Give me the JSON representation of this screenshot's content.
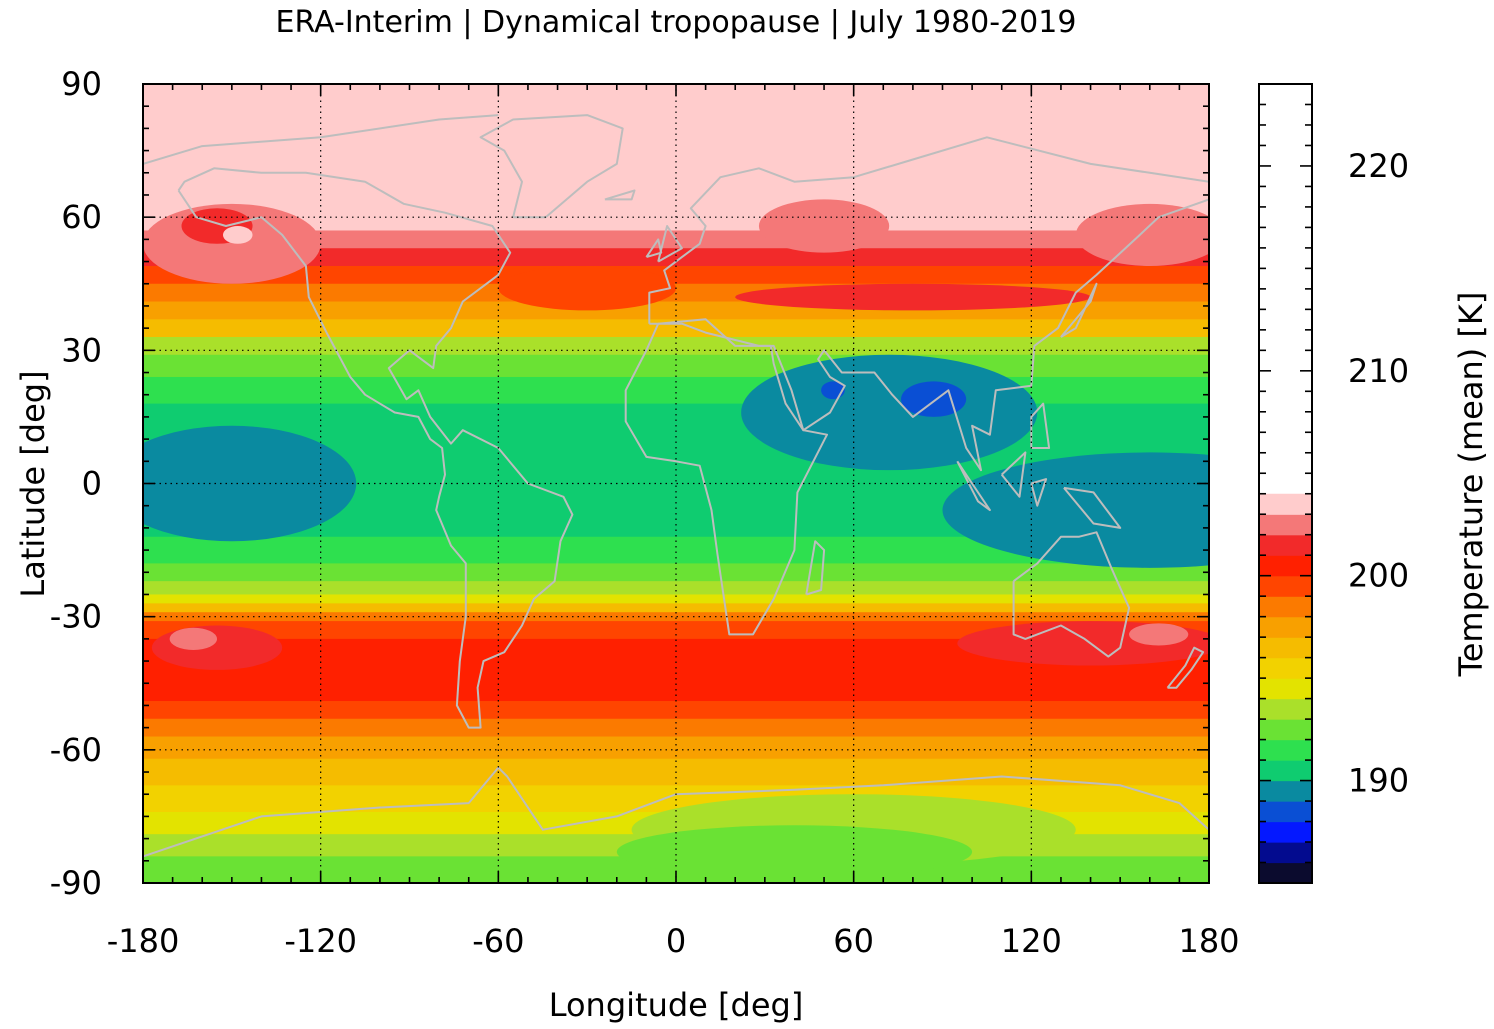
{
  "title": "ERA-Interim | Dynamical tropopause | July 1980-2019",
  "map": {
    "x_label": "Longitude [deg]",
    "y_label": "Latitude [deg]",
    "x_ticks": [
      "-180",
      "-120",
      "-60",
      "0",
      "60",
      "120",
      "180"
    ],
    "y_ticks": [
      "90",
      "60",
      "30",
      "0",
      "-30",
      "-60",
      "-90"
    ],
    "x_range": [
      -180,
      180
    ],
    "y_range": [
      -90,
      90
    ],
    "grid": "dotted",
    "coastline_color": "#bdbdbd"
  },
  "colorbar": {
    "label": "Temperature (mean) [K]",
    "range": [
      185,
      224
    ],
    "ticks": [
      "220",
      "210",
      "200",
      "190"
    ],
    "levels": [
      {
        "from": 185,
        "to": 186,
        "color": "#0b0b2e"
      },
      {
        "from": 186,
        "to": 187,
        "color": "#030b8f"
      },
      {
        "from": 187,
        "to": 188,
        "color": "#0418ff"
      },
      {
        "from": 188,
        "to": 189,
        "color": "#0a4fd4"
      },
      {
        "from": 189,
        "to": 190,
        "color": "#0a8aa0"
      },
      {
        "from": 190,
        "to": 191,
        "color": "#0fcc70"
      },
      {
        "from": 191,
        "to": 192,
        "color": "#2ee04f"
      },
      {
        "from": 192,
        "to": 193,
        "color": "#6ae234"
      },
      {
        "from": 193,
        "to": 194,
        "color": "#aae02a"
      },
      {
        "from": 194,
        "to": 195,
        "color": "#e3e300"
      },
      {
        "from": 195,
        "to": 196,
        "color": "#f2d200"
      },
      {
        "from": 196,
        "to": 197,
        "color": "#f5bc00"
      },
      {
        "from": 197,
        "to": 198,
        "color": "#f8a000"
      },
      {
        "from": 198,
        "to": 199,
        "color": "#fb7a00"
      },
      {
        "from": 199,
        "to": 200,
        "color": "#ff4500"
      },
      {
        "from": 200,
        "to": 201,
        "color": "#ff2000"
      },
      {
        "from": 201,
        "to": 202,
        "color": "#f22a2a"
      },
      {
        "from": 202,
        "to": 203,
        "color": "#f47878"
      },
      {
        "from": 203,
        "to": 204,
        "color": "#ffcccc"
      }
    ]
  },
  "field": {
    "zonal_bands": [
      {
        "lat_from": 90,
        "lat_to": 57,
        "color": "#ffcccc"
      },
      {
        "lat_from": 57,
        "lat_to": 53,
        "color": "#f47878"
      },
      {
        "lat_from": 53,
        "lat_to": 49,
        "color": "#f22a2a"
      },
      {
        "lat_from": 49,
        "lat_to": 45,
        "color": "#ff4500"
      },
      {
        "lat_from": 45,
        "lat_to": 41,
        "color": "#fb7a00"
      },
      {
        "lat_from": 41,
        "lat_to": 37,
        "color": "#f8a000"
      },
      {
        "lat_from": 37,
        "lat_to": 33,
        "color": "#f5bc00"
      },
      {
        "lat_from": 33,
        "lat_to": 29,
        "color": "#aae02a"
      },
      {
        "lat_from": 29,
        "lat_to": 24,
        "color": "#6ae234"
      },
      {
        "lat_from": 24,
        "lat_to": 18,
        "color": "#2ee04f"
      },
      {
        "lat_from": 18,
        "lat_to": -12,
        "color": "#0fcc70"
      },
      {
        "lat_from": -12,
        "lat_to": -18,
        "color": "#2ee04f"
      },
      {
        "lat_from": -18,
        "lat_to": -22,
        "color": "#6ae234"
      },
      {
        "lat_from": -22,
        "lat_to": -25,
        "color": "#aae02a"
      },
      {
        "lat_from": -25,
        "lat_to": -27,
        "color": "#e3e300"
      },
      {
        "lat_from": -27,
        "lat_to": -29,
        "color": "#f5bc00"
      },
      {
        "lat_from": -29,
        "lat_to": -31,
        "color": "#fb7a00"
      },
      {
        "lat_from": -31,
        "lat_to": -35,
        "color": "#ff4500"
      },
      {
        "lat_from": -35,
        "lat_to": -49,
        "color": "#ff2000"
      },
      {
        "lat_from": -49,
        "lat_to": -53,
        "color": "#ff4500"
      },
      {
        "lat_from": -53,
        "lat_to": -57,
        "color": "#fb7a00"
      },
      {
        "lat_from": -57,
        "lat_to": -62,
        "color": "#f8a000"
      },
      {
        "lat_from": -62,
        "lat_to": -68,
        "color": "#f5bc00"
      },
      {
        "lat_from": -68,
        "lat_to": -74,
        "color": "#f2d200"
      },
      {
        "lat_from": -74,
        "lat_to": -79,
        "color": "#e3e300"
      },
      {
        "lat_from": -79,
        "lat_to": -84,
        "color": "#aae02a"
      },
      {
        "lat_from": -84,
        "lat_to": -90,
        "color": "#6ae234"
      }
    ],
    "regions": [
      {
        "shape": "ellipse",
        "lon": -150,
        "lat": 54,
        "rlon": 30,
        "rlat": 9,
        "color": "#f47878"
      },
      {
        "shape": "ellipse",
        "lon": -155,
        "lat": 58,
        "rlon": 12,
        "rlat": 4,
        "color": "#f22a2a"
      },
      {
        "shape": "ellipse",
        "lon": -148,
        "lat": 56,
        "rlon": 5,
        "rlat": 2,
        "color": "#ffcccc"
      },
      {
        "shape": "ellipse",
        "lon": -30,
        "lat": 44,
        "rlon": 30,
        "rlat": 5,
        "color": "#ff4500"
      },
      {
        "shape": "ellipse",
        "lon": 50,
        "lat": 58,
        "rlon": 22,
        "rlat": 6,
        "color": "#f47878"
      },
      {
        "shape": "ellipse",
        "lon": 160,
        "lat": 56,
        "rlon": 25,
        "rlat": 7,
        "color": "#f47878"
      },
      {
        "shape": "ellipse",
        "lon": 80,
        "lat": 42,
        "rlon": 60,
        "rlat": 3,
        "color": "#f22a2a"
      },
      {
        "shape": "ellipse",
        "lon": -150,
        "lat": 0,
        "rlon": 42,
        "rlat": 13,
        "color": "#0a8aa0"
      },
      {
        "shape": "ellipse",
        "lon": 72,
        "lat": 16,
        "rlon": 50,
        "rlat": 13,
        "color": "#0a8aa0"
      },
      {
        "shape": "ellipse",
        "lon": 160,
        "lat": -6,
        "rlon": 70,
        "rlat": 13,
        "color": "#0a8aa0"
      },
      {
        "shape": "ellipse",
        "lon": 53,
        "lat": 21,
        "rlon": 4,
        "rlat": 2,
        "color": "#0a4fd4"
      },
      {
        "shape": "ellipse",
        "lon": 87,
        "lat": 19,
        "rlon": 11,
        "rlat": 4,
        "color": "#0a4fd4"
      },
      {
        "shape": "ellipse",
        "lon": -155,
        "lat": -37,
        "rlon": 22,
        "rlat": 5,
        "color": "#f22a2a"
      },
      {
        "shape": "ellipse",
        "lon": -163,
        "lat": -35,
        "rlon": 8,
        "rlat": 2.5,
        "color": "#f47878"
      },
      {
        "shape": "ellipse",
        "lon": 140,
        "lat": -36,
        "rlon": 45,
        "rlat": 5,
        "color": "#f22a2a"
      },
      {
        "shape": "ellipse",
        "lon": 163,
        "lat": -34,
        "rlon": 10,
        "rlat": 2.5,
        "color": "#f47878"
      },
      {
        "shape": "ellipse",
        "lon": 60,
        "lat": -78,
        "rlon": 75,
        "rlat": 8,
        "color": "#aae02a"
      },
      {
        "shape": "ellipse",
        "lon": 40,
        "lat": -83,
        "rlon": 60,
        "rlat": 6,
        "color": "#6ae234"
      }
    ],
    "coastlines": [
      [
        [
          -168,
          66
        ],
        [
          -162,
          60
        ],
        [
          -152,
          58
        ],
        [
          -140,
          60
        ],
        [
          -133,
          56
        ],
        [
          -125,
          49
        ],
        [
          -124,
          42
        ],
        [
          -118,
          34
        ],
        [
          -110,
          24
        ],
        [
          -105,
          20
        ],
        [
          -95,
          16
        ],
        [
          -87,
          15
        ],
        [
          -83,
          10
        ],
        [
          -79,
          8
        ],
        [
          -78,
          2
        ],
        [
          -80,
          -3
        ],
        [
          -81,
          -6
        ],
        [
          -76,
          -14
        ],
        [
          -71,
          -18
        ],
        [
          -71,
          -30
        ],
        [
          -73,
          -40
        ],
        [
          -74,
          -50
        ],
        [
          -70,
          -55
        ],
        [
          -66,
          -55
        ],
        [
          -67,
          -46
        ],
        [
          -65,
          -40
        ],
        [
          -58,
          -38
        ],
        [
          -52,
          -32
        ],
        [
          -48,
          -26
        ],
        [
          -41,
          -22
        ],
        [
          -39,
          -13
        ],
        [
          -35,
          -7
        ],
        [
          -38,
          -3
        ],
        [
          -50,
          0
        ],
        [
          -60,
          8
        ],
        [
          -72,
          12
        ],
        [
          -76,
          9
        ],
        [
          -83,
          15
        ],
        [
          -87,
          21
        ],
        [
          -91,
          19
        ],
        [
          -97,
          26
        ],
        [
          -90,
          30
        ],
        [
          -82,
          26
        ],
        [
          -81,
          31
        ],
        [
          -76,
          35
        ],
        [
          -72,
          41
        ],
        [
          -66,
          44
        ],
        [
          -60,
          47
        ],
        [
          -56,
          52
        ],
        [
          -62,
          58
        ],
        [
          -78,
          61
        ],
        [
          -92,
          63
        ],
        [
          -105,
          68
        ],
        [
          -125,
          70
        ],
        [
          -140,
          70
        ],
        [
          -156,
          71
        ],
        [
          -166,
          68
        ],
        [
          -168,
          66
        ]
      ],
      [
        [
          -55,
          60
        ],
        [
          -44,
          60
        ],
        [
          -30,
          68
        ],
        [
          -20,
          72
        ],
        [
          -18,
          80
        ],
        [
          -30,
          83
        ],
        [
          -55,
          82
        ],
        [
          -66,
          78
        ],
        [
          -58,
          75
        ],
        [
          -52,
          68
        ],
        [
          -55,
          60
        ]
      ],
      [
        [
          -9,
          36
        ],
        [
          -9,
          43
        ],
        [
          -2,
          44
        ],
        [
          -4,
          48
        ],
        [
          2,
          51
        ],
        [
          8,
          54
        ],
        [
          10,
          58
        ],
        [
          5,
          62
        ],
        [
          15,
          69
        ],
        [
          28,
          71
        ],
        [
          40,
          68
        ],
        [
          60,
          69
        ],
        [
          80,
          73
        ],
        [
          105,
          78
        ],
        [
          140,
          72
        ],
        [
          160,
          70
        ],
        [
          180,
          68
        ],
        [
          180,
          64
        ],
        [
          163,
          60
        ],
        [
          155,
          55
        ],
        [
          142,
          47
        ],
        [
          135,
          43
        ],
        [
          129,
          35
        ],
        [
          121,
          31
        ],
        [
          120,
          22
        ],
        [
          108,
          21
        ],
        [
          106,
          11
        ],
        [
          100,
          13
        ],
        [
          103,
          3
        ],
        [
          98,
          8
        ],
        [
          92,
          21
        ],
        [
          80,
          15
        ],
        [
          73,
          20
        ],
        [
          67,
          25
        ],
        [
          56,
          25
        ],
        [
          50,
          30
        ],
        [
          48,
          28
        ],
        [
          52,
          24
        ],
        [
          57,
          22
        ],
        [
          52,
          16
        ],
        [
          43,
          12
        ],
        [
          39,
          21
        ],
        [
          33,
          31
        ],
        [
          28,
          31
        ],
        [
          10,
          34
        ],
        [
          2,
          36
        ],
        [
          -5,
          36
        ],
        [
          -9,
          36
        ]
      ],
      [
        [
          -6,
          36
        ],
        [
          -10,
          30
        ],
        [
          -17,
          21
        ],
        [
          -17,
          14
        ],
        [
          -10,
          6
        ],
        [
          0,
          5
        ],
        [
          8,
          4
        ],
        [
          10,
          -1
        ],
        [
          12,
          -6
        ],
        [
          14,
          -16
        ],
        [
          18,
          -34
        ],
        [
          26,
          -34
        ],
        [
          33,
          -26
        ],
        [
          40,
          -15
        ],
        [
          41,
          -2
        ],
        [
          51,
          11
        ],
        [
          43,
          12
        ],
        [
          37,
          18
        ],
        [
          33,
          27
        ],
        [
          32,
          31
        ],
        [
          20,
          31
        ],
        [
          10,
          37
        ],
        [
          -6,
          36
        ]
      ],
      [
        [
          44,
          -25
        ],
        [
          47,
          -13
        ],
        [
          50,
          -15
        ],
        [
          49,
          -24
        ],
        [
          44,
          -25
        ]
      ],
      [
        [
          95,
          5
        ],
        [
          100,
          0
        ],
        [
          106,
          -6
        ],
        [
          102,
          -4
        ],
        [
          95,
          5
        ]
      ],
      [
        [
          114,
          -22
        ],
        [
          114,
          -34
        ],
        [
          118,
          -35
        ],
        [
          130,
          -32
        ],
        [
          138,
          -35
        ],
        [
          146,
          -39
        ],
        [
          150,
          -37
        ],
        [
          153,
          -28
        ],
        [
          147,
          -19
        ],
        [
          142,
          -11
        ],
        [
          136,
          -12
        ],
        [
          130,
          -12
        ],
        [
          122,
          -18
        ],
        [
          114,
          -22
        ]
      ],
      [
        [
          166,
          -46
        ],
        [
          172,
          -41
        ],
        [
          175,
          -37
        ],
        [
          178,
          -38
        ],
        [
          174,
          -42
        ],
        [
          169,
          -46
        ],
        [
          166,
          -46
        ]
      ],
      [
        [
          131,
          -1
        ],
        [
          141,
          -2
        ],
        [
          150,
          -10
        ],
        [
          141,
          -9
        ],
        [
          131,
          -1
        ]
      ],
      [
        [
          -180,
          -84
        ],
        [
          -140,
          -75
        ],
        [
          -100,
          -73
        ],
        [
          -70,
          -72
        ],
        [
          -60,
          -64
        ],
        [
          -57,
          -66
        ],
        [
          -45,
          -78
        ],
        [
          -20,
          -75
        ],
        [
          0,
          -70
        ],
        [
          40,
          -69
        ],
        [
          70,
          -68
        ],
        [
          110,
          -66
        ],
        [
          150,
          -68
        ],
        [
          170,
          -72
        ],
        [
          180,
          -78
        ]
      ],
      [
        [
          -180,
          72
        ],
        [
          -160,
          76
        ],
        [
          -120,
          78
        ],
        [
          -80,
          82
        ],
        [
          -60,
          83
        ]
      ],
      [
        [
          -6,
          50
        ],
        [
          -3,
          58
        ],
        [
          2,
          53
        ],
        [
          -6,
          50
        ]
      ],
      [
        [
          -10,
          51
        ],
        [
          -6,
          55
        ],
        [
          -5,
          52
        ],
        [
          -10,
          51
        ]
      ],
      [
        [
          -24,
          64
        ],
        [
          -14,
          66
        ],
        [
          -15,
          64
        ],
        [
          -24,
          64
        ]
      ],
      [
        [
          130,
          33
        ],
        [
          140,
          41
        ],
        [
          142,
          45
        ],
        [
          135,
          35
        ],
        [
          130,
          33
        ]
      ],
      [
        [
          120,
          8
        ],
        [
          126,
          8
        ],
        [
          124,
          18
        ],
        [
          120,
          15
        ],
        [
          120,
          8
        ]
      ],
      [
        [
          110,
          2
        ],
        [
          118,
          7
        ],
        [
          116,
          -3
        ],
        [
          110,
          2
        ]
      ],
      [
        [
          120,
          0
        ],
        [
          125,
          1
        ],
        [
          122,
          -5
        ],
        [
          120,
          0
        ]
      ]
    ]
  }
}
